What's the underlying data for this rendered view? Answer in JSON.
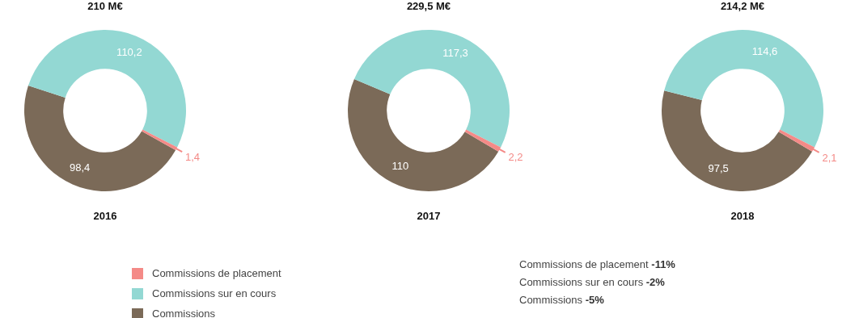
{
  "chart_data": [
    {
      "type": "donut",
      "title": "210 M€",
      "xlabel": "2016",
      "categories": [
        "Commissions de placement",
        "Commissions sur en cours",
        "Commissions"
      ],
      "values": [
        1.4,
        110.2,
        98.4
      ],
      "value_labels": [
        "1,4",
        "110,2",
        "98,4"
      ],
      "colors": [
        "#f48a87",
        "#93d8d3",
        "#7b6a58"
      ],
      "legend": "bottom"
    },
    {
      "type": "donut",
      "title": "229,5 M€",
      "xlabel": "2017",
      "values": [
        2.2,
        117.3,
        110
      ],
      "value_labels": [
        "2,2",
        "117,3",
        "110"
      ],
      "colors": [
        "#f48a87",
        "#93d8d3",
        "#7b6a58"
      ]
    },
    {
      "type": "donut",
      "title": "214,2 M€",
      "xlabel": "2018",
      "values": [
        2.1,
        114.6,
        97.5
      ],
      "value_labels": [
        "2,1",
        "114,6",
        "97,5"
      ],
      "colors": [
        "#f48a87",
        "#93d8d3",
        "#7b6a58"
      ]
    },
    {
      "type": "other",
      "annotations": [
        "Commissions de placement -11%",
        "Commissions sur en cours -2%",
        "Commissions -5%"
      ]
    }
  ]
}
